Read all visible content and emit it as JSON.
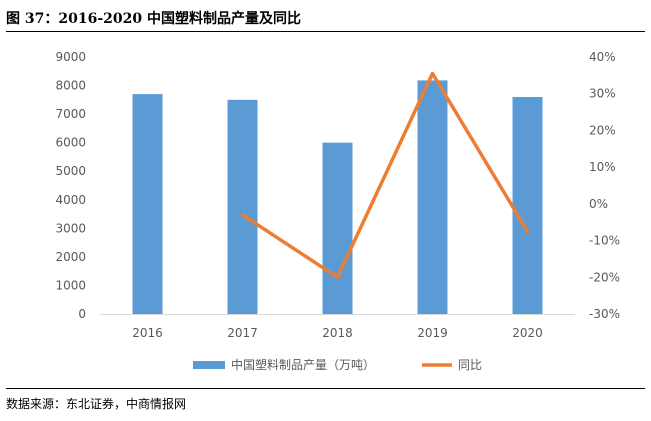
{
  "figure": {
    "title": "图 37：2016-2020 中国塑料制品产量及同比",
    "source": "数据来源：东北证券，中商情报网"
  },
  "chart_data": {
    "type": "bar",
    "categories": [
      "2016",
      "2017",
      "2018",
      "2019",
      "2020"
    ],
    "series": [
      {
        "name": "中国塑料制品产量（万吨）",
        "type": "bar",
        "axis": "left",
        "color": "#5B9BD5",
        "values": [
          7700,
          7500,
          6000,
          8180,
          7600
        ]
      },
      {
        "name": "同比",
        "type": "line",
        "axis": "right",
        "color": "#ED7D31",
        "values": [
          null,
          -3,
          -20,
          35.5,
          -7.5
        ]
      }
    ],
    "y_left": {
      "ylim": [
        0,
        9000
      ],
      "ticks": [
        "0",
        "1000",
        "2000",
        "3000",
        "4000",
        "5000",
        "6000",
        "7000",
        "8000",
        "9000"
      ]
    },
    "y_right": {
      "ylim": [
        -30,
        40
      ],
      "ticks": [
        "-30%",
        "-20%",
        "-10%",
        "0%",
        "10%",
        "20%",
        "30%",
        "40%"
      ]
    },
    "grid": false,
    "legend": "bottom"
  }
}
